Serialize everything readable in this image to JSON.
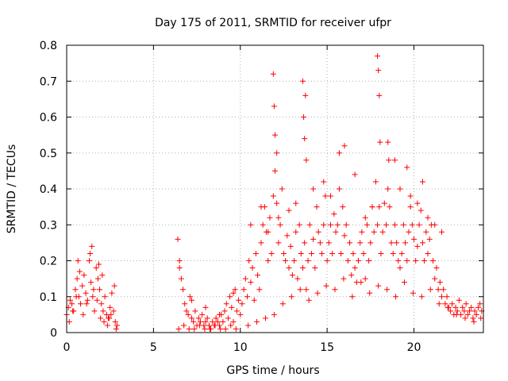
{
  "chart_data": {
    "type": "scatter",
    "title": "Day 175 of 2011, SRMTID for receiver ufpr",
    "xlabel": "GPS time / hours",
    "ylabel": "SRMTID / TECUs",
    "xlim": [
      0,
      24
    ],
    "ylim": [
      0,
      0.8
    ],
    "xticks": [
      0,
      5,
      10,
      15,
      20
    ],
    "xtick_labels": [
      "0",
      "5",
      "10",
      "15",
      "20"
    ],
    "yticks": [
      0,
      0.1,
      0.2,
      0.3,
      0.4,
      0.5,
      0.6,
      0.7,
      0.8
    ],
    "ytick_labels": [
      "0",
      "0.1",
      "0.2",
      "0.3",
      "0.4",
      "0.5",
      "0.6",
      "0.7",
      "0.8"
    ],
    "grid": true,
    "marker": "plus",
    "color": "#ff0000",
    "series": [
      {
        "name": "SRMTID",
        "x": [
          0.0,
          0.1,
          0.2,
          0.3,
          0.4,
          0.5,
          0.6,
          0.7,
          0.8,
          0.9,
          1.0,
          1.1,
          1.2,
          1.3,
          1.4,
          1.5,
          1.6,
          1.7,
          1.8,
          1.9,
          2.0,
          2.1,
          2.2,
          2.3,
          2.4,
          2.5,
          2.6,
          2.7,
          2.8,
          2.9,
          0.15,
          0.35,
          0.55,
          0.75,
          0.95,
          1.15,
          1.35,
          1.55,
          1.75,
          1.95,
          2.15,
          2.35,
          2.55,
          2.75,
          0.65,
          1.45,
          1.85,
          2.05,
          2.45,
          2.85,
          6.4,
          6.5,
          6.6,
          6.7,
          6.8,
          6.9,
          7.0,
          7.1,
          7.2,
          7.3,
          7.4,
          7.5,
          7.6,
          7.7,
          7.8,
          7.9,
          8.0,
          8.1,
          8.2,
          8.3,
          8.4,
          8.5,
          8.6,
          8.7,
          8.8,
          8.9,
          9.0,
          9.1,
          9.2,
          9.3,
          9.4,
          9.5,
          9.6,
          9.7,
          9.8,
          9.9,
          6.45,
          6.75,
          7.05,
          7.35,
          7.65,
          7.95,
          8.25,
          8.55,
          8.85,
          9.15,
          9.45,
          9.75,
          6.5,
          7.2,
          8.0,
          8.8,
          9.6,
          10.0,
          10.1,
          10.2,
          10.3,
          10.4,
          10.5,
          10.6,
          10.7,
          10.8,
          10.9,
          11.0,
          11.1,
          11.2,
          11.3,
          11.4,
          11.5,
          11.6,
          11.7,
          11.8,
          11.9,
          12.0,
          12.1,
          12.2,
          12.3,
          12.4,
          12.5,
          12.6,
          12.7,
          12.8,
          12.9,
          13.0,
          13.1,
          13.2,
          13.3,
          13.4,
          13.5,
          13.6,
          13.7,
          13.8,
          13.9,
          14.0,
          14.1,
          14.2,
          14.3,
          14.4,
          14.5,
          14.6,
          14.7,
          14.8,
          14.9,
          15.0,
          15.1,
          15.2,
          15.3,
          15.4,
          15.5,
          15.6,
          15.7,
          15.8,
          15.9,
          16.0,
          16.1,
          16.2,
          16.3,
          16.4,
          16.5,
          16.6,
          16.7,
          16.8,
          16.9,
          17.0,
          17.1,
          17.2,
          17.3,
          17.4,
          17.5,
          17.6,
          17.7,
          17.8,
          17.9,
          18.0,
          18.1,
          18.2,
          18.3,
          18.4,
          18.5,
          18.6,
          18.7,
          18.8,
          18.9,
          19.0,
          19.1,
          19.2,
          19.3,
          19.4,
          19.5,
          19.6,
          19.7,
          19.8,
          19.9,
          20.0,
          20.1,
          20.2,
          20.3,
          20.4,
          20.5,
          20.6,
          20.7,
          20.8,
          20.9,
          21.0,
          21.1,
          21.2,
          21.3,
          21.4,
          21.5,
          21.6,
          21.7,
          21.8,
          21.9,
          22.0,
          22.1,
          22.2,
          22.3,
          22.4,
          22.5,
          22.6,
          22.7,
          22.8,
          22.9,
          23.0,
          23.1,
          23.2,
          23.3,
          23.4,
          23.5,
          23.6,
          23.7,
          23.8,
          23.9,
          10.45,
          10.95,
          11.45,
          11.95,
          12.45,
          12.95,
          13.45,
          13.95,
          14.45,
          14.95,
          15.45,
          15.95,
          16.45,
          16.95,
          17.45,
          17.95,
          18.45,
          18.95,
          19.45,
          19.95,
          20.45,
          20.95,
          21.45,
          21.95,
          22.45,
          22.95,
          23.45,
          23.85,
          11.9,
          11.95,
          12.0,
          13.6,
          13.65,
          13.7,
          13.75,
          15.7,
          17.9,
          17.95,
          18.0,
          18.05,
          18.5,
          18.55,
          19.6,
          12.1,
          13.8,
          16.0,
          18.9,
          20.5,
          10.6,
          11.2,
          11.6,
          12.2,
          12.8,
          13.2,
          14.2,
          14.8,
          15.2,
          16.6,
          17.2,
          17.6,
          19.2,
          19.8,
          20.2,
          20.8,
          21.2,
          21.6
        ],
        "y": [
          0.05,
          0.07,
          0.09,
          0.08,
          0.06,
          0.12,
          0.15,
          0.1,
          0.08,
          0.13,
          0.16,
          0.11,
          0.09,
          0.2,
          0.14,
          0.1,
          0.06,
          0.18,
          0.15,
          0.12,
          0.08,
          0.06,
          0.1,
          0.05,
          0.04,
          0.07,
          0.11,
          0.06,
          0.03,
          0.02,
          0.03,
          0.06,
          0.1,
          0.17,
          0.05,
          0.08,
          0.22,
          0.12,
          0.09,
          0.04,
          0.03,
          0.02,
          0.05,
          0.13,
          0.2,
          0.24,
          0.19,
          0.16,
          0.04,
          0.01,
          0.26,
          0.2,
          0.15,
          0.12,
          0.08,
          0.06,
          0.05,
          0.1,
          0.04,
          0.03,
          0.06,
          0.02,
          0.04,
          0.03,
          0.05,
          0.02,
          0.03,
          0.04,
          0.02,
          0.01,
          0.03,
          0.02,
          0.04,
          0.03,
          0.02,
          0.05,
          0.03,
          0.06,
          0.08,
          0.04,
          0.1,
          0.07,
          0.03,
          0.12,
          0.06,
          0.09,
          0.01,
          0.02,
          0.01,
          0.01,
          0.02,
          0.01,
          0.01,
          0.02,
          0.01,
          0.01,
          0.02,
          0.01,
          0.18,
          0.09,
          0.07,
          0.05,
          0.11,
          0.05,
          0.08,
          0.12,
          0.15,
          0.1,
          0.2,
          0.14,
          0.18,
          0.09,
          0.22,
          0.16,
          0.12,
          0.25,
          0.3,
          0.35,
          0.28,
          0.2,
          0.32,
          0.22,
          0.38,
          0.45,
          0.36,
          0.25,
          0.3,
          0.4,
          0.22,
          0.2,
          0.27,
          0.18,
          0.24,
          0.16,
          0.2,
          0.28,
          0.15,
          0.3,
          0.22,
          0.18,
          0.25,
          0.12,
          0.2,
          0.3,
          0.22,
          0.26,
          0.18,
          0.35,
          0.28,
          0.25,
          0.22,
          0.3,
          0.38,
          0.2,
          0.25,
          0.3,
          0.22,
          0.33,
          0.28,
          0.3,
          0.4,
          0.22,
          0.35,
          0.27,
          0.3,
          0.2,
          0.25,
          0.16,
          0.22,
          0.18,
          0.14,
          0.2,
          0.25,
          0.28,
          0.22,
          0.15,
          0.3,
          0.2,
          0.25,
          0.35,
          0.28,
          0.42,
          0.3,
          0.35,
          0.22,
          0.28,
          0.36,
          0.3,
          0.4,
          0.35,
          0.25,
          0.22,
          0.3,
          0.25,
          0.2,
          0.18,
          0.22,
          0.3,
          0.25,
          0.2,
          0.28,
          0.35,
          0.3,
          0.26,
          0.2,
          0.24,
          0.3,
          0.34,
          0.25,
          0.2,
          0.28,
          0.22,
          0.26,
          0.3,
          0.2,
          0.15,
          0.18,
          0.12,
          0.14,
          0.1,
          0.12,
          0.08,
          0.1,
          0.07,
          0.06,
          0.08,
          0.05,
          0.07,
          0.06,
          0.09,
          0.05,
          0.07,
          0.06,
          0.08,
          0.05,
          0.06,
          0.07,
          0.04,
          0.06,
          0.05,
          0.07,
          0.08,
          0.06,
          0.02,
          0.03,
          0.04,
          0.05,
          0.08,
          0.1,
          0.12,
          0.09,
          0.11,
          0.13,
          0.12,
          0.15,
          0.1,
          0.14,
          0.11,
          0.13,
          0.12,
          0.1,
          0.14,
          0.11,
          0.1,
          0.12,
          0.08,
          0.07,
          0.05,
          0.04,
          0.03,
          0.04,
          0.72,
          0.63,
          0.55,
          0.7,
          0.6,
          0.54,
          0.66,
          0.5,
          0.77,
          0.73,
          0.66,
          0.53,
          0.53,
          0.48,
          0.46,
          0.5,
          0.48,
          0.52,
          0.48,
          0.42,
          0.3,
          0.35,
          0.28,
          0.32,
          0.34,
          0.36,
          0.4,
          0.42,
          0.38,
          0.44,
          0.32,
          0.35,
          0.4,
          0.38,
          0.36,
          0.32,
          0.3,
          0.28
        ]
      }
    ]
  }
}
